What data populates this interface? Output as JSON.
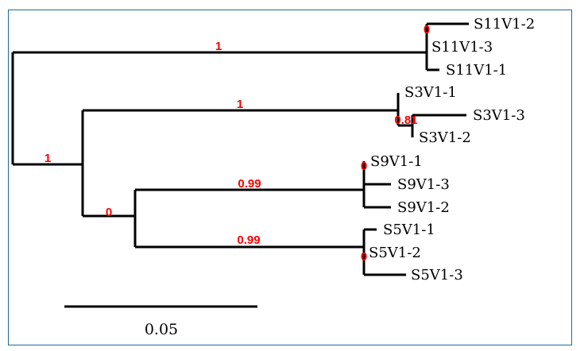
{
  "tree": {
    "tips": {
      "s11_2": "S11V1-2",
      "s11_3": "S11V1-3",
      "s11_1": "S11V1-1",
      "s3_1": "S3V1-1",
      "s3_3": "S3V1-3",
      "s3_2": "S3V1-2",
      "s9_1": "S9V1-1",
      "s9_3": "S9V1-3",
      "s9_2": "S9V1-2",
      "s5_1": "S5V1-1",
      "s5_2": "S5V1-2",
      "s5_3": "S5V1-3"
    },
    "support": {
      "s11_branch": "1",
      "s11_node": "0",
      "lower_branch": "1",
      "s3_branch": "1",
      "s3_inner": "0.81",
      "s9s5_branch": "0",
      "s9_branch": "0.99",
      "s9_node": "0",
      "s5_branch": "0.99",
      "s5_node": "0"
    },
    "scale_bar_label": "0.05",
    "colors": {
      "branch": "#000000",
      "support": "#ff0000",
      "frame": "#1f6a98"
    }
  }
}
